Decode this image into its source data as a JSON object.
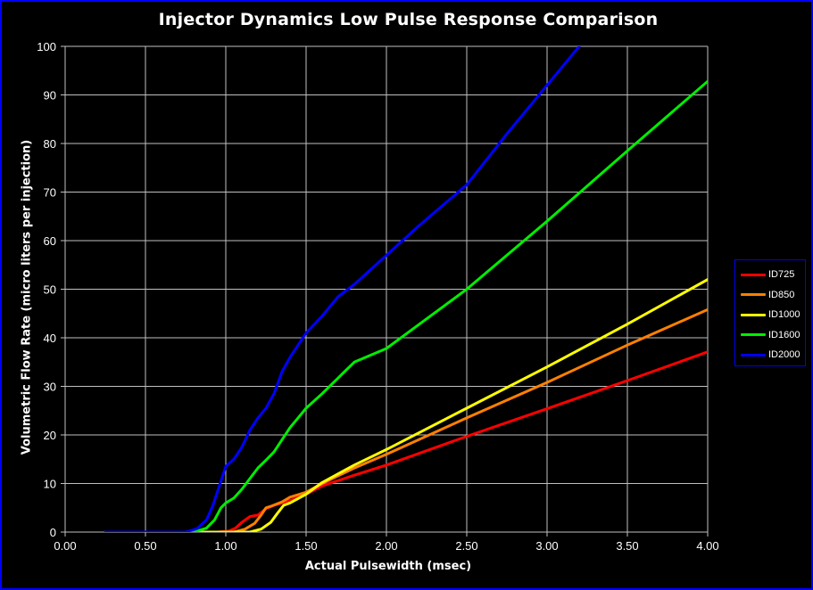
{
  "chart_data": {
    "type": "line",
    "title": "Injector Dynamics Low Pulse Response Comparison",
    "xlabel": "Actual Pulsewidth (msec)",
    "ylabel": "Volumetric Flow Rate (micro liters per injection)",
    "xlim": [
      0,
      4
    ],
    "ylim": [
      0,
      100
    ],
    "x_ticks": [
      "0.00",
      "0.50",
      "1.00",
      "1.50",
      "2.00",
      "2.50",
      "3.00",
      "3.50",
      "4.00"
    ],
    "y_ticks": [
      "0",
      "10",
      "20",
      "30",
      "40",
      "50",
      "60",
      "70",
      "80",
      "90",
      "100"
    ],
    "grid": true,
    "legend_position": "right",
    "series": [
      {
        "name": "ID725",
        "color": "#ff0000",
        "x": [
          0.25,
          0.95,
          1.02,
          1.06,
          1.1,
          1.15,
          1.2,
          1.25,
          1.3,
          1.4,
          1.5,
          1.6,
          1.8,
          2.0,
          2.5,
          3.0,
          3.5,
          4.0
        ],
        "y": [
          0,
          0,
          0.2,
          0.8,
          2.0,
          3.2,
          3.5,
          4.8,
          5.5,
          6.5,
          7.8,
          9.5,
          11.7,
          13.8,
          19.7,
          25.4,
          31.2,
          37.1
        ]
      },
      {
        "name": "ID850",
        "color": "#ff8000",
        "x": [
          0.25,
          1.05,
          1.12,
          1.18,
          1.22,
          1.25,
          1.28,
          1.35,
          1.4,
          1.5,
          1.6,
          1.8,
          2.0,
          2.5,
          3.0,
          3.5,
          4.0
        ],
        "y": [
          0,
          0,
          0.6,
          1.8,
          3.5,
          5.0,
          5.3,
          6.2,
          7.2,
          8.2,
          10.0,
          13.2,
          16.0,
          23.5,
          30.8,
          38.5,
          45.8
        ]
      },
      {
        "name": "ID1000",
        "color": "#ffff00",
        "x": [
          0.25,
          1.15,
          1.22,
          1.28,
          1.32,
          1.36,
          1.4,
          1.5,
          1.6,
          1.8,
          2.0,
          2.5,
          3.0,
          3.5,
          4.0
        ],
        "y": [
          0,
          0,
          0.6,
          2.0,
          3.8,
          5.5,
          6.0,
          7.8,
          10.2,
          13.8,
          17.0,
          25.5,
          34.0,
          42.8,
          52.0
        ]
      },
      {
        "name": "ID1600",
        "color": "#00ee00",
        "x": [
          0.25,
          0.8,
          0.88,
          0.93,
          0.97,
          1.0,
          1.05,
          1.1,
          1.15,
          1.2,
          1.25,
          1.3,
          1.35,
          1.4,
          1.45,
          1.5,
          1.6,
          1.8,
          2.0,
          2.5,
          3.0,
          3.5,
          4.0
        ],
        "y": [
          0,
          0,
          0.8,
          2.5,
          5.0,
          6.0,
          7.0,
          8.8,
          11.0,
          13.2,
          14.8,
          16.5,
          19.0,
          21.5,
          23.5,
          25.5,
          28.5,
          35.0,
          37.8,
          50.0,
          64.0,
          78.5,
          92.8
        ]
      },
      {
        "name": "ID2000",
        "color": "#0000ff",
        "x": [
          0.25,
          0.75,
          0.82,
          0.88,
          0.92,
          0.96,
          1.0,
          1.05,
          1.1,
          1.15,
          1.2,
          1.25,
          1.3,
          1.35,
          1.4,
          1.45,
          1.5,
          1.6,
          1.7,
          1.8,
          2.0,
          2.2,
          2.5,
          2.75,
          3.0,
          3.2
        ],
        "y": [
          0,
          0,
          0.7,
          2.5,
          5.5,
          9.5,
          13.5,
          15.0,
          17.5,
          21.0,
          23.5,
          25.5,
          28.5,
          33.0,
          36.0,
          38.5,
          41.0,
          44.5,
          48.5,
          51.0,
          57.0,
          63.0,
          71.5,
          82.0,
          92.0,
          100.0
        ]
      }
    ]
  }
}
